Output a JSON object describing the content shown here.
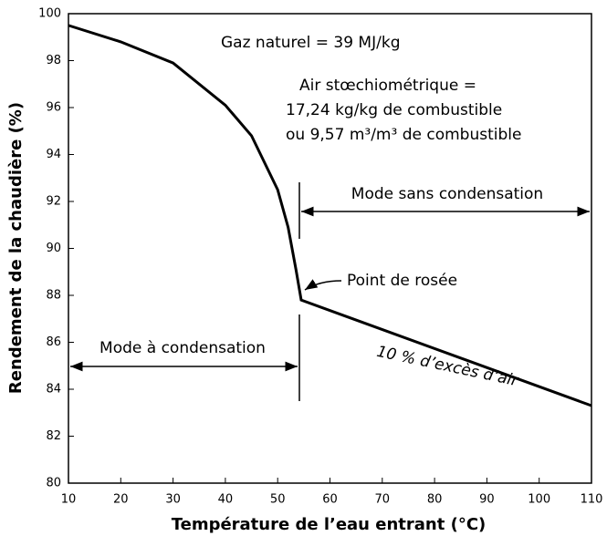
{
  "chart_data": {
    "type": "line",
    "x_label": "Température de l’eau entrant (°C)",
    "y_label": "Rendement de la chaudière (%)",
    "series": [
      {
        "name": "Rendement",
        "color": "#000000",
        "x": [
          10,
          20,
          30,
          40,
          45,
          50,
          52,
          53.5,
          54.5,
          110
        ],
        "values": [
          99.5,
          98.8,
          97.9,
          96.1,
          94.8,
          92.5,
          90.9,
          89.1,
          87.8,
          83.3
        ]
      }
    ],
    "xlim": [
      10,
      110
    ],
    "xticks": [
      10,
      20,
      30,
      40,
      50,
      60,
      70,
      80,
      90,
      100,
      110
    ],
    "ylim": [
      80,
      100
    ],
    "yticks": [
      80,
      82,
      84,
      86,
      88,
      90,
      92,
      94,
      96,
      98,
      100
    ],
    "annotations": [
      "Gaz naturel = 39 MJ/kg",
      "Air stœchiométrique =",
      "17,24 kg/kg de combustible",
      "ou 9,57 m³/m³ de combustible",
      "Mode sans condensation",
      "Point de rosée",
      "Mode à condensation",
      "10 % d’excès d’air"
    ]
  }
}
